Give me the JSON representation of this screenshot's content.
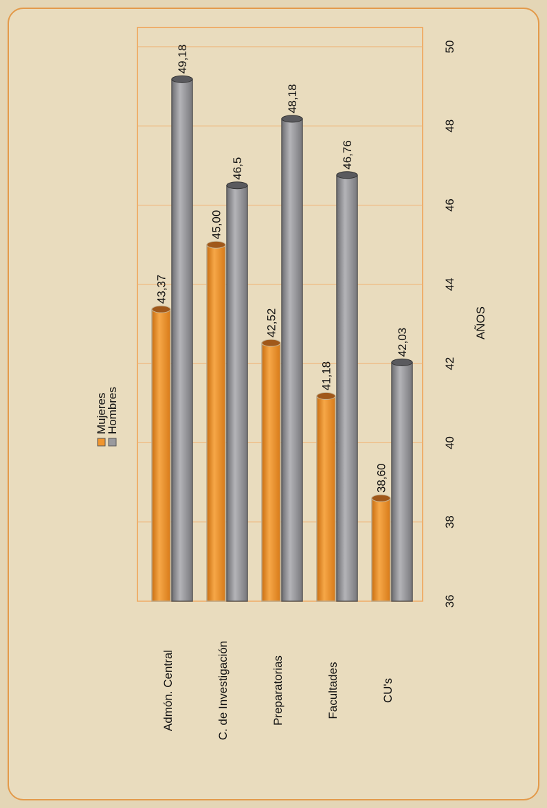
{
  "chart_data": {
    "type": "bar",
    "categories": [
      "Admón. Central",
      "C. de Investigación",
      "Preparatorias",
      "Facultades",
      "CU's"
    ],
    "series": [
      {
        "name": "Mujeres",
        "color": "#f0952e",
        "values": [
          43.37,
          45.0,
          42.52,
          41.18,
          38.6
        ],
        "value_labels": [
          "43,37",
          "45,00",
          "42,52",
          "41,18",
          "38,60"
        ]
      },
      {
        "name": "Hombres",
        "color": "#9a9a9e",
        "values": [
          49.18,
          46.5,
          48.18,
          46.76,
          42.03
        ],
        "value_labels": [
          "49,18",
          "46,5",
          "48,18",
          "46,76",
          "42,03"
        ]
      }
    ],
    "ylabel": "AÑOS",
    "ylim": [
      36,
      50
    ],
    "yticks": [
      36,
      38,
      40,
      42,
      44,
      46,
      48,
      50
    ],
    "grid": true
  }
}
